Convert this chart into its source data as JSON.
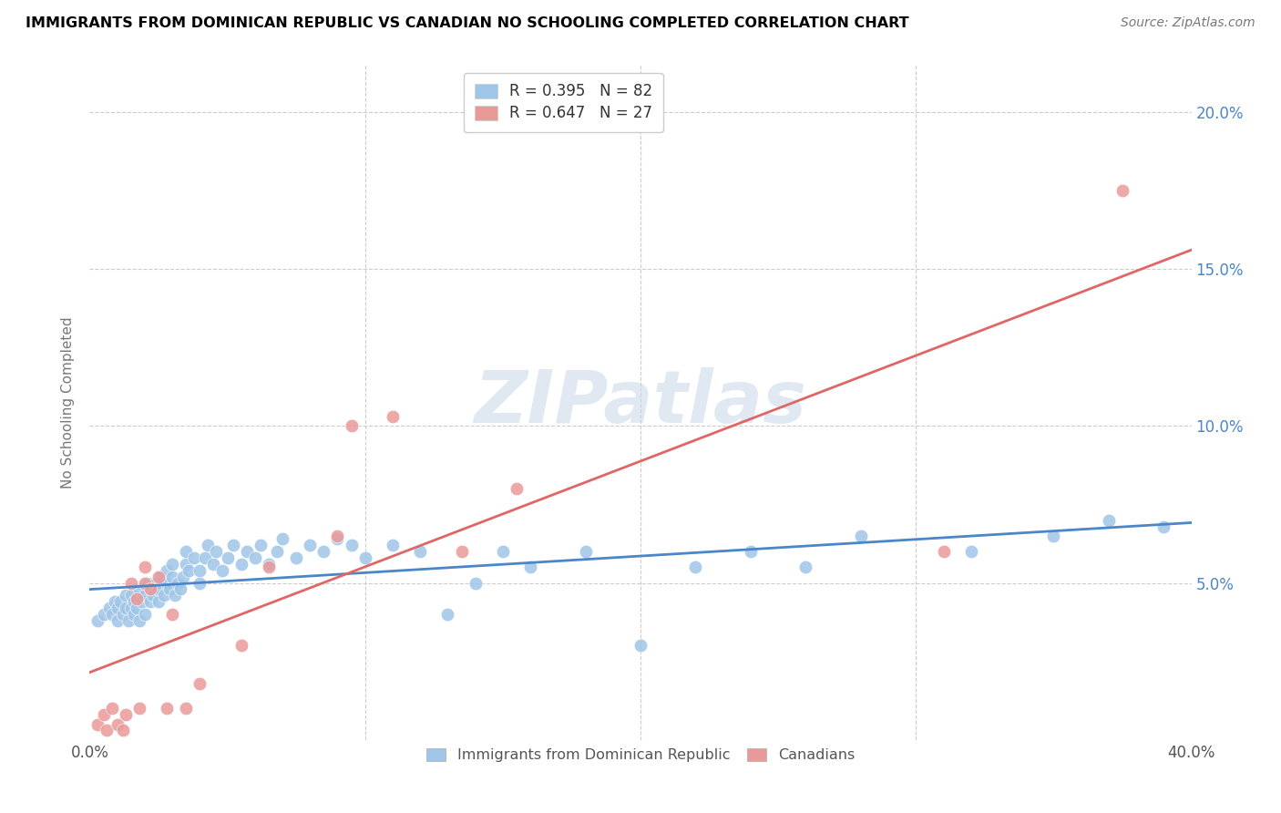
{
  "title": "IMMIGRANTS FROM DOMINICAN REPUBLIC VS CANADIAN NO SCHOOLING COMPLETED CORRELATION CHART",
  "source": "Source: ZipAtlas.com",
  "ylabel": "No Schooling Completed",
  "xlim": [
    0.0,
    0.4
  ],
  "ylim": [
    0.0,
    0.215
  ],
  "yticks": [
    0.05,
    0.1,
    0.15,
    0.2
  ],
  "ytick_labels": [
    "5.0%",
    "10.0%",
    "15.0%",
    "20.0%"
  ],
  "watermark": "ZIPatlas",
  "legend_entry1_r": "R = 0.395",
  "legend_entry1_n": "N = 82",
  "legend_entry2_r": "R = 0.647",
  "legend_entry2_n": "N = 27",
  "legend_label1": "Immigrants from Dominican Republic",
  "legend_label2": "Canadians",
  "blue_color": "#9fc5e8",
  "pink_color": "#ea9999",
  "blue_line_color": "#4a86c8",
  "pink_line_color": "#e06666",
  "blue_text_color": "#4a86c8",
  "pink_text_color": "#e06666",
  "blue_scatter_x": [
    0.003,
    0.005,
    0.007,
    0.008,
    0.009,
    0.01,
    0.01,
    0.011,
    0.012,
    0.013,
    0.013,
    0.014,
    0.015,
    0.015,
    0.016,
    0.016,
    0.017,
    0.018,
    0.018,
    0.019,
    0.02,
    0.02,
    0.021,
    0.022,
    0.022,
    0.023,
    0.024,
    0.025,
    0.025,
    0.026,
    0.027,
    0.028,
    0.028,
    0.029,
    0.03,
    0.03,
    0.031,
    0.032,
    0.033,
    0.034,
    0.035,
    0.035,
    0.036,
    0.038,
    0.04,
    0.04,
    0.042,
    0.043,
    0.045,
    0.046,
    0.048,
    0.05,
    0.052,
    0.055,
    0.057,
    0.06,
    0.062,
    0.065,
    0.068,
    0.07,
    0.075,
    0.08,
    0.085,
    0.09,
    0.095,
    0.1,
    0.11,
    0.12,
    0.13,
    0.14,
    0.15,
    0.16,
    0.18,
    0.2,
    0.22,
    0.24,
    0.26,
    0.28,
    0.32,
    0.35,
    0.37,
    0.39
  ],
  "blue_scatter_y": [
    0.038,
    0.04,
    0.042,
    0.04,
    0.044,
    0.038,
    0.042,
    0.044,
    0.04,
    0.042,
    0.046,
    0.038,
    0.042,
    0.046,
    0.04,
    0.044,
    0.042,
    0.038,
    0.048,
    0.044,
    0.04,
    0.046,
    0.05,
    0.044,
    0.048,
    0.046,
    0.05,
    0.044,
    0.048,
    0.052,
    0.046,
    0.05,
    0.054,
    0.048,
    0.052,
    0.056,
    0.046,
    0.05,
    0.048,
    0.052,
    0.056,
    0.06,
    0.054,
    0.058,
    0.05,
    0.054,
    0.058,
    0.062,
    0.056,
    0.06,
    0.054,
    0.058,
    0.062,
    0.056,
    0.06,
    0.058,
    0.062,
    0.056,
    0.06,
    0.064,
    0.058,
    0.062,
    0.06,
    0.064,
    0.062,
    0.058,
    0.062,
    0.06,
    0.04,
    0.05,
    0.06,
    0.055,
    0.06,
    0.03,
    0.055,
    0.06,
    0.055,
    0.065,
    0.06,
    0.065,
    0.07,
    0.068
  ],
  "pink_scatter_x": [
    0.003,
    0.005,
    0.006,
    0.008,
    0.01,
    0.012,
    0.013,
    0.015,
    0.017,
    0.018,
    0.02,
    0.02,
    0.022,
    0.025,
    0.028,
    0.03,
    0.035,
    0.04,
    0.055,
    0.065,
    0.09,
    0.095,
    0.11,
    0.135,
    0.155,
    0.31,
    0.375
  ],
  "pink_scatter_y": [
    0.005,
    0.008,
    0.003,
    0.01,
    0.005,
    0.003,
    0.008,
    0.05,
    0.045,
    0.01,
    0.05,
    0.055,
    0.048,
    0.052,
    0.01,
    0.04,
    0.01,
    0.018,
    0.03,
    0.055,
    0.065,
    0.1,
    0.103,
    0.06,
    0.08,
    0.06,
    0.175
  ]
}
